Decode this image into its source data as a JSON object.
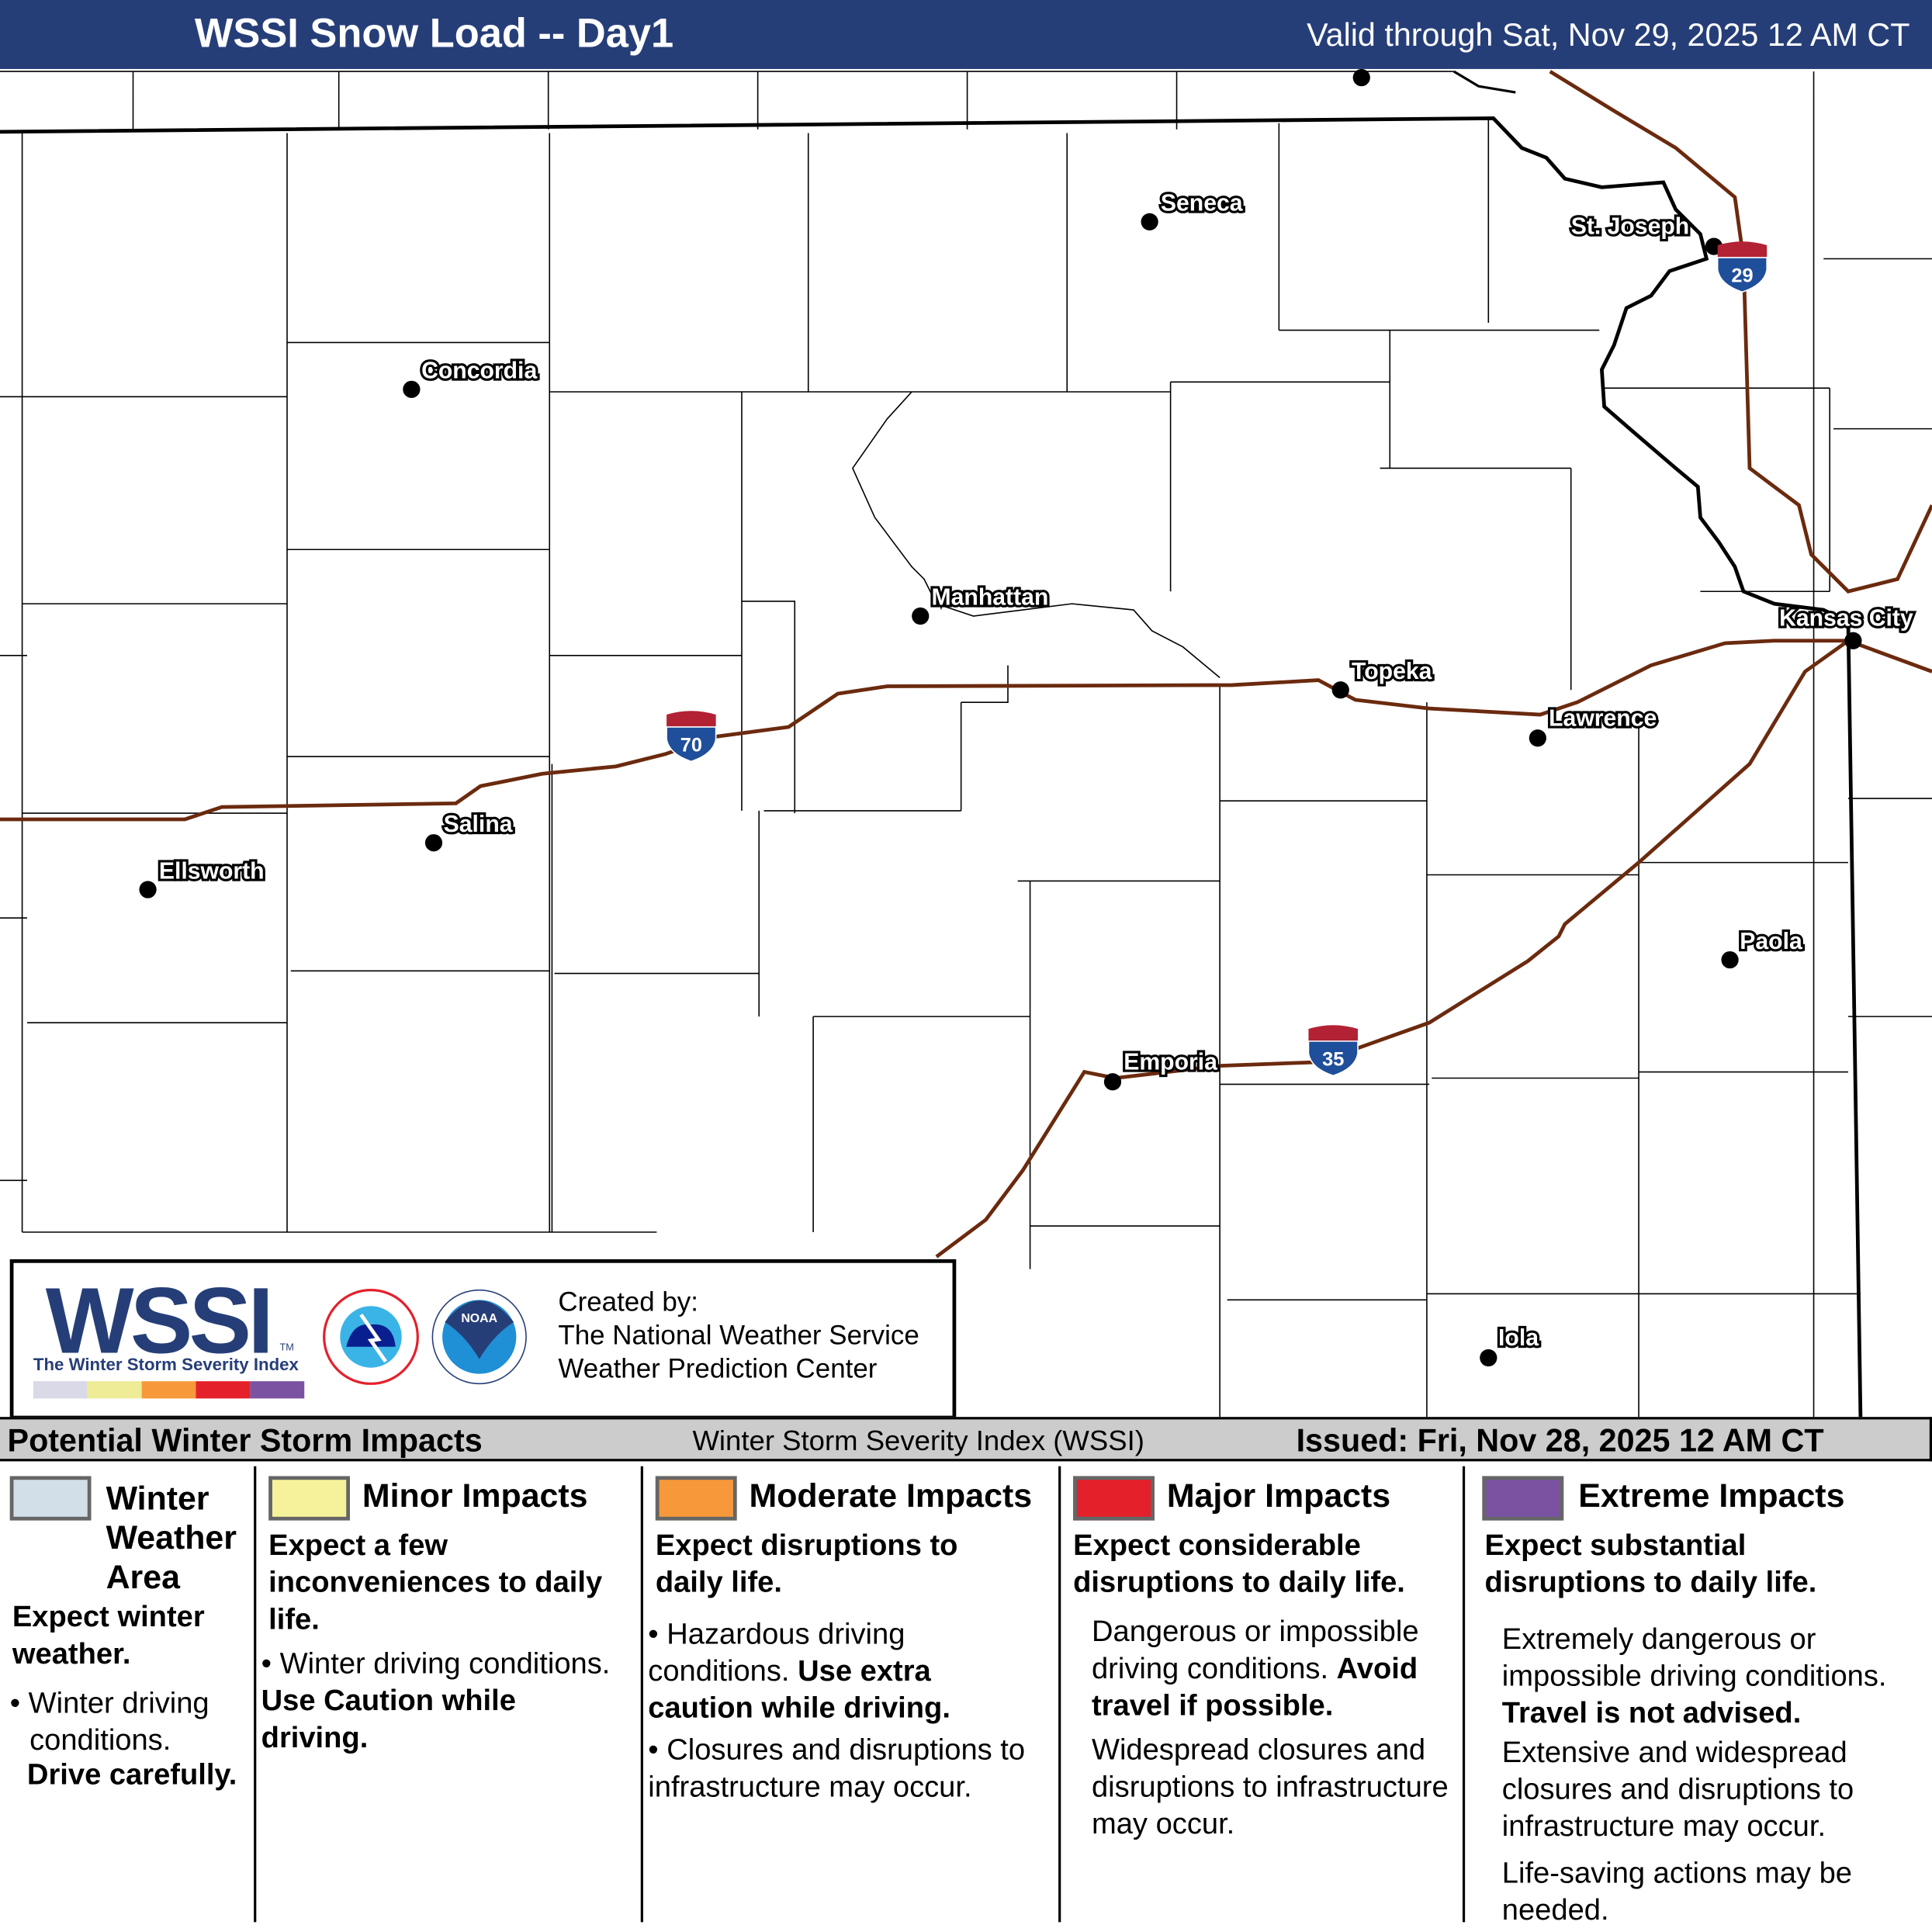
{
  "header": {
    "title": "WSSI Snow Load -- Day1",
    "valid": "Valid through Sat, Nov 29, 2025 12 AM CT"
  },
  "map": {
    "cities": [
      "Seneca",
      "St. Joseph",
      "Concordia",
      "Manhattan",
      "Kansas City",
      "Topeka",
      "Lawrence",
      "Salina",
      "Ellsworth",
      "Paola",
      "Emporia",
      "Iola"
    ],
    "shields": [
      "70",
      "29",
      "35"
    ],
    "colors": {
      "highway": "#6b2a0e",
      "shield_blue": "#1f4e9a",
      "shield_red": "#b22234"
    }
  },
  "logo": {
    "wssi": "WSSI",
    "tm": "TM",
    "subtitle": "The Winter Storm Severity Index",
    "created_by": "Created by:",
    "org1": "The National Weather Service",
    "org2": "Weather Prediction Center",
    "scale_colors": [
      "#d9d9e8",
      "#eeec96",
      "#f7993a",
      "#e4202a",
      "#7b52a1"
    ]
  },
  "strip": {
    "left": "Potential Winter Storm Impacts",
    "center": "Winter Storm Severity Index (WSSI)",
    "right": "Issued: Fri, Nov 28, 2025 12 AM CT"
  },
  "legend": [
    {
      "title": "Winter Weather Area",
      "color": "#d3dfe8",
      "lead": "Expect winter weather.",
      "bullets": [
        "• Winter driving conditions.",
        "Drive carefully."
      ]
    },
    {
      "title": "Minor Impacts",
      "color": "#f6f29c",
      "lead": "Expect a few inconveniences to daily life.",
      "b1": "Winter driving conditions.",
      "b1b": "Use Caution while driving."
    },
    {
      "title": "Moderate Impacts",
      "color": "#f7993a",
      "lead": "Expect disruptions to daily life.",
      "b1": "Hazardous driving conditions.",
      "b1b": "Use extra caution while driving.",
      "b2": "Closures and disruptions to infrastructure may occur."
    },
    {
      "title": "Major Impacts",
      "color": "#e4202a",
      "lead": "Expect considerable disruptions to daily life.",
      "b1": "Dangerous or impossible driving conditions.",
      "b1b": "Avoid travel if possible.",
      "b2": "Widespread closures and disruptions to infrastructure may occur."
    },
    {
      "title": "Extreme Impacts",
      "color": "#7b52a1",
      "lead": "Expect substantial disruptions to daily life.",
      "b1": "Extremely dangerous or impossible driving conditions.",
      "b1b": "Travel is not advised.",
      "b2": "Extensive and widespread closures and disruptions to infrastructure may occur.",
      "b3": "Life-saving actions may be needed."
    }
  ]
}
